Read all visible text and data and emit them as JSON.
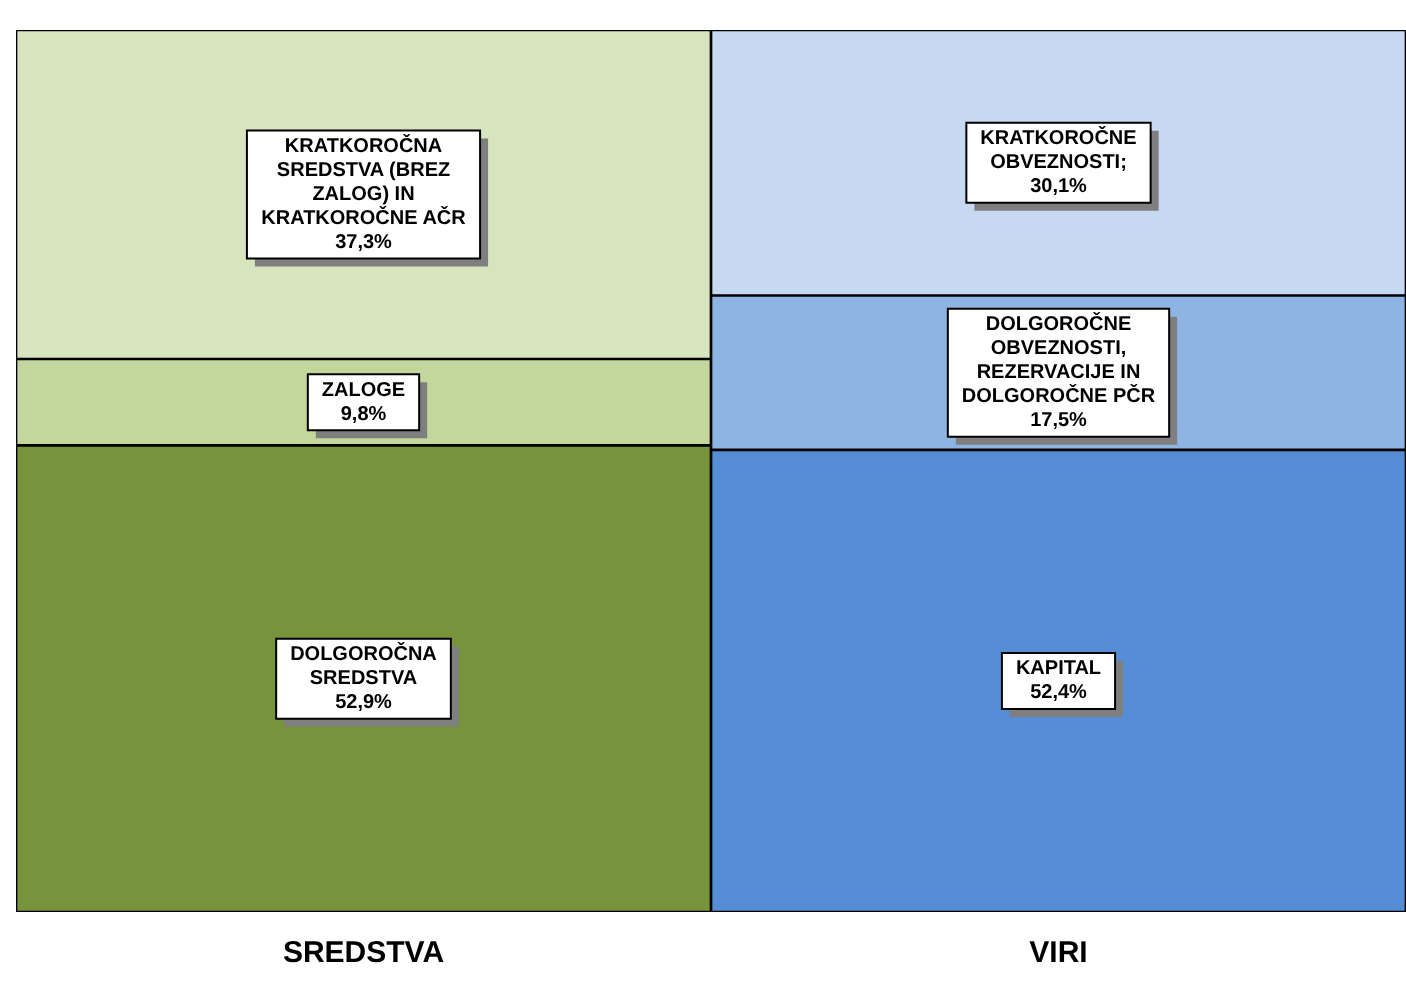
{
  "chart_data": {
    "type": "bar",
    "stacked": true,
    "categories": [
      "SREDSTVA",
      "VIRI"
    ],
    "ylim": [
      0,
      100
    ],
    "tick_labels": "x",
    "grid": false,
    "legend": false,
    "series": [
      {
        "name": "DOLGOROČNA SREDSTVA",
        "color": "#77933c",
        "values": [
          52.9,
          null
        ],
        "value_labels": [
          "52,9%",
          null
        ]
      },
      {
        "name": "ZALOGE",
        "color": "#c3d69b",
        "values": [
          9.8,
          null
        ],
        "value_labels": [
          "9,8%",
          null
        ]
      },
      {
        "name": "KRATKOROČNA SREDSTVA (BREZ ZALOG) IN KRATKOROČNE AČR",
        "color": "#d7e4bd",
        "values": [
          37.3,
          null
        ],
        "value_labels": [
          "37,3%",
          null
        ]
      },
      {
        "name": "KAPITAL",
        "color": "#558ed5",
        "values": [
          null,
          52.4
        ],
        "value_labels": [
          null,
          "52,4%"
        ]
      },
      {
        "name": "DOLGOROČNE OBVEZNOSTI, REZERVACIJE IN DOLGOROČNE PČR",
        "color": "#8eb4e3",
        "values": [
          null,
          17.5
        ],
        "value_labels": [
          null,
          "17,5%"
        ]
      },
      {
        "name": "KRATKOROČNE OBVEZNOSTI;",
        "color": "#c6d9f1",
        "values": [
          null,
          30.1
        ],
        "value_labels": [
          null,
          "30,1%"
        ]
      }
    ]
  }
}
